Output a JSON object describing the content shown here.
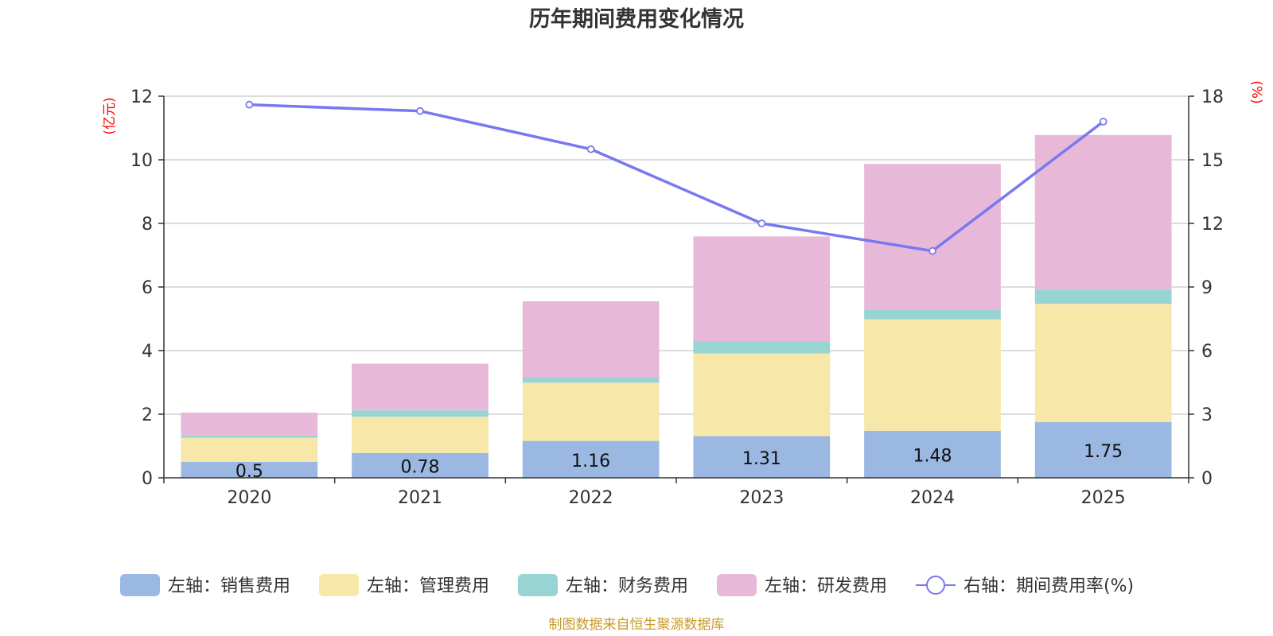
{
  "chart_data": {
    "type": "bar",
    "stacked": true,
    "title": "历年期间费用变化情况",
    "categories": [
      "2020",
      "2021",
      "2022",
      "2023",
      "2024",
      "2025"
    ],
    "left_axis": {
      "unit_label": "(亿元)",
      "ylim": [
        0,
        12
      ],
      "ticks": [
        "0",
        "2",
        "4",
        "6",
        "8",
        "10",
        "12"
      ]
    },
    "right_axis": {
      "unit_label": "(%)",
      "ylim": [
        0,
        18
      ],
      "ticks": [
        "0",
        "3",
        "6",
        "9",
        "12",
        "15",
        "18"
      ]
    },
    "series": [
      {
        "name": "左轴：销售费用",
        "axis": "left",
        "color": "#9bb8e2",
        "values": [
          0.5,
          0.78,
          1.16,
          1.31,
          1.48,
          1.75
        ],
        "labels": [
          "0.5",
          "0.78",
          "1.16",
          "1.31",
          "1.48",
          "1.75"
        ]
      },
      {
        "name": "左轴：管理费用",
        "axis": "left",
        "color": "#f7e7a8",
        "values": [
          0.76,
          1.14,
          1.83,
          2.6,
          3.5,
          3.72
        ]
      },
      {
        "name": "左轴：财务费用",
        "axis": "left",
        "color": "#98d4d4",
        "values": [
          0.07,
          0.2,
          0.17,
          0.38,
          0.31,
          0.45
        ]
      },
      {
        "name": "左轴：研发费用",
        "axis": "left",
        "color": "#e8b8d8",
        "values": [
          0.72,
          1.47,
          2.39,
          3.3,
          4.58,
          4.86
        ]
      },
      {
        "name": "右轴：期间费用率(%)",
        "axis": "right",
        "type": "line",
        "color": "#7878f0",
        "values": [
          17.6,
          17.3,
          15.5,
          12.0,
          10.7,
          16.8
        ]
      }
    ],
    "grid": true,
    "legend_position": "bottom",
    "source_note": "制图数据来自恒生聚源数据库"
  }
}
